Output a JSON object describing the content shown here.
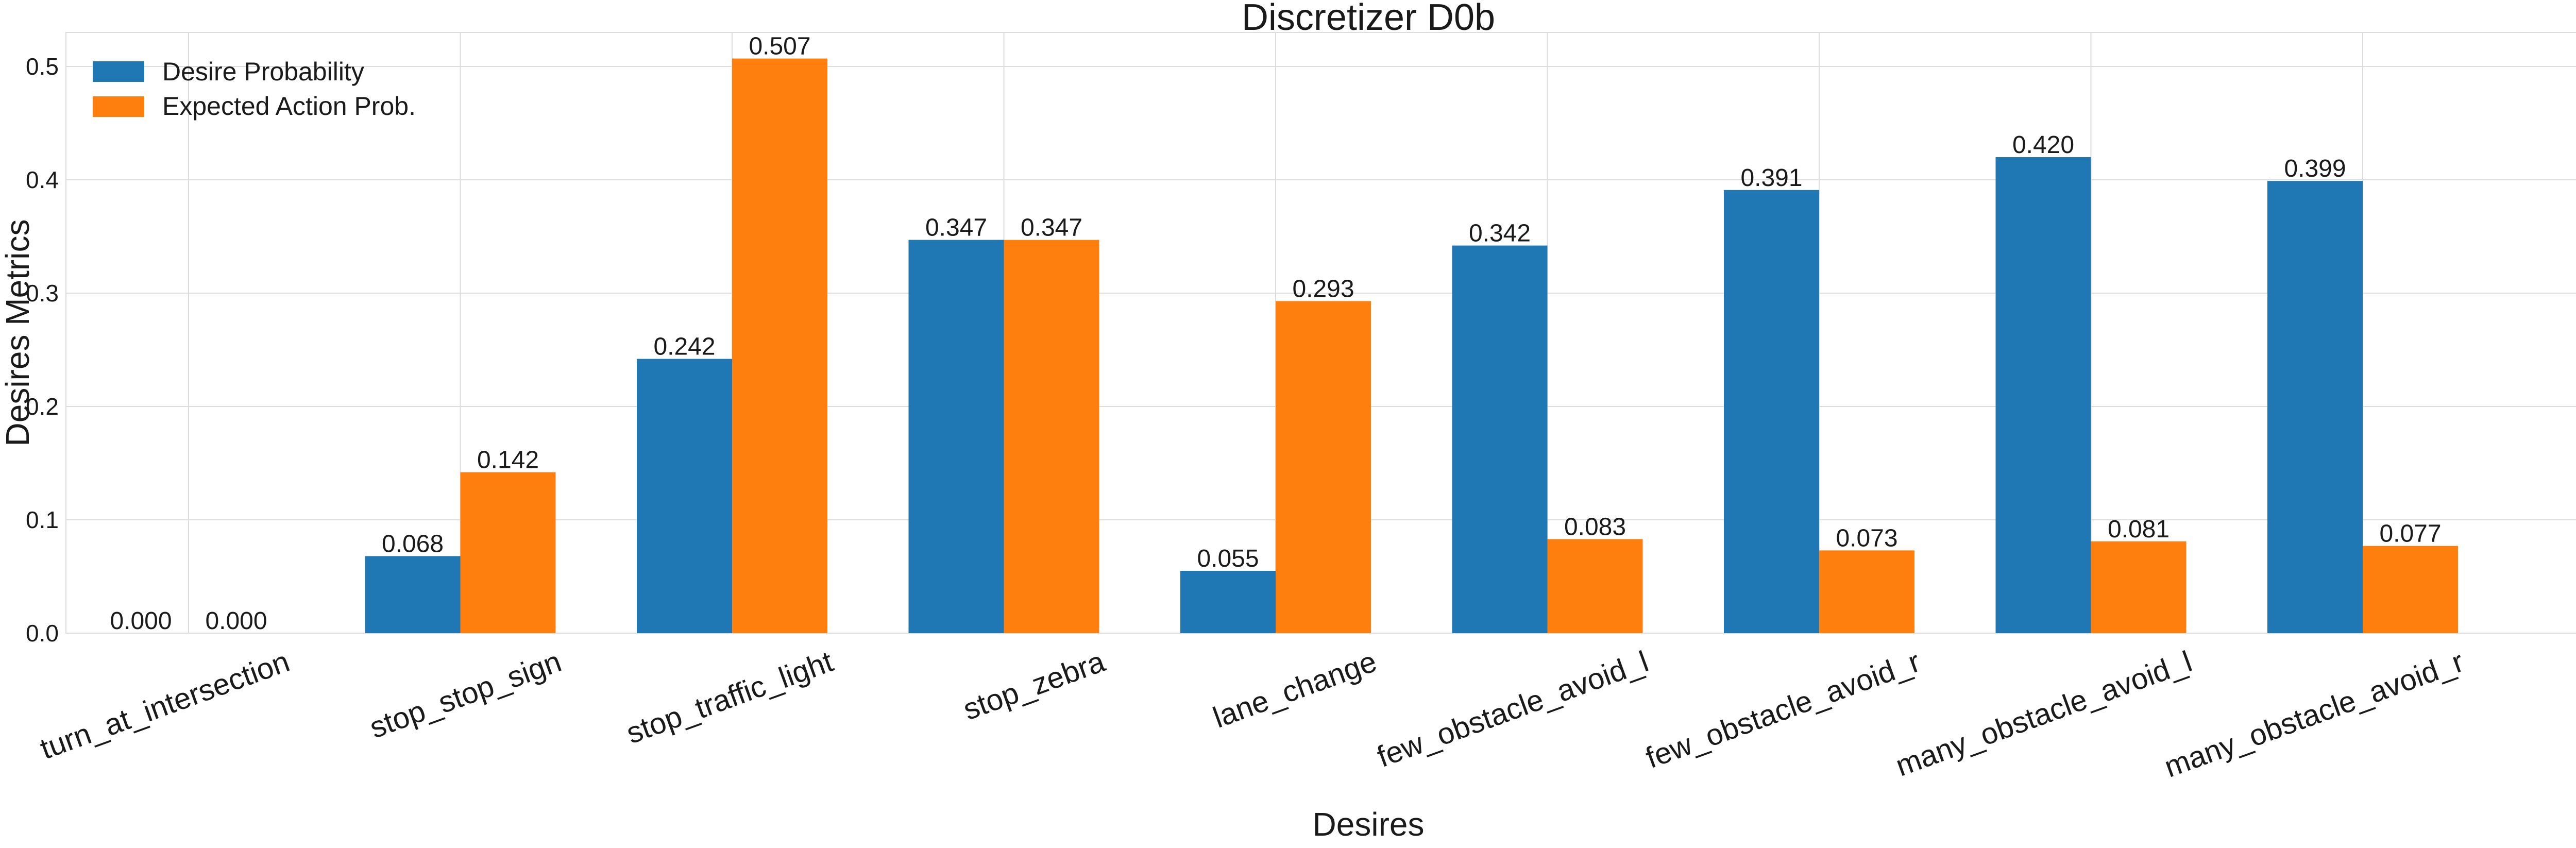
{
  "chart_data": {
    "type": "bar",
    "title": "Discretizer D0b",
    "xlabel": "Desires",
    "ylabel": "Desires Metrics",
    "ylim": [
      0,
      0.53
    ],
    "yticks": [
      "0.0",
      "0.1",
      "0.2",
      "0.3",
      "0.4",
      "0.5"
    ],
    "grid": true,
    "legend_position": "top-left",
    "categories": [
      "turn_at_intersection",
      "stop_stop_sign",
      "stop_traffic_light",
      "stop_zebra",
      "lane_change",
      "few_obstacle_avoid_l",
      "few_obstacle_avoid_r",
      "many_obstacle_avoid_l",
      "many_obstacle_avoid_r"
    ],
    "series": [
      {
        "name": "Desire Probability",
        "color": "#1f77b4",
        "values": [
          0.0,
          0.068,
          0.242,
          0.347,
          0.055,
          0.342,
          0.391,
          0.42,
          0.399
        ],
        "labels": [
          "0.000",
          "0.068",
          "0.242",
          "0.347",
          "0.055",
          "0.342",
          "0.391",
          "0.420",
          "0.399"
        ]
      },
      {
        "name": "Expected Action Prob.",
        "color": "#ff7f0e",
        "values": [
          0.0,
          0.142,
          0.507,
          0.347,
          0.293,
          0.083,
          0.073,
          0.081,
          0.077
        ],
        "labels": [
          "0.000",
          "0.142",
          "0.507",
          "0.347",
          "0.293",
          "0.083",
          "0.073",
          "0.081",
          "0.077"
        ]
      }
    ]
  }
}
